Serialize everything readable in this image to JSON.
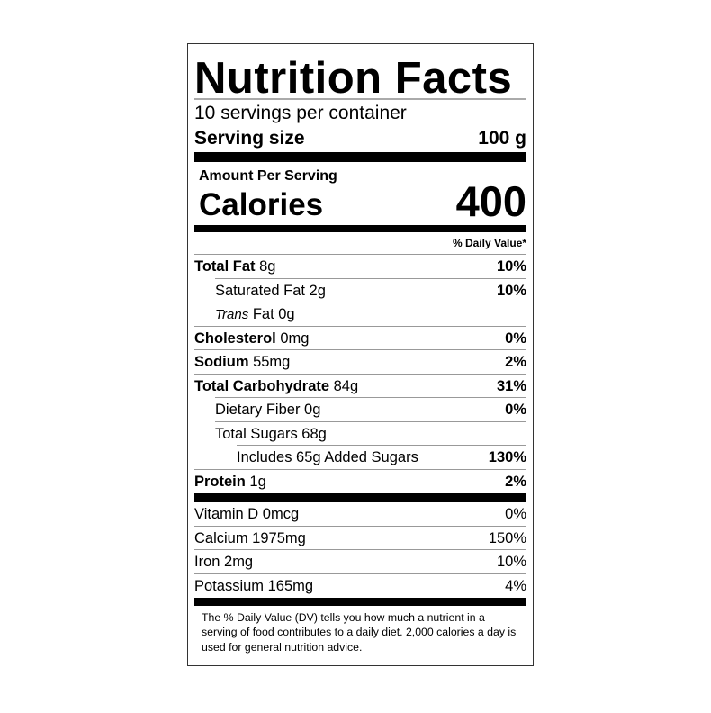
{
  "title": "Nutrition Facts",
  "servings_per_container": "10 servings per container",
  "serving_size": {
    "label": "Serving size",
    "value": "100 g"
  },
  "amount_per_serving": "Amount Per Serving",
  "calories": {
    "label": "Calories",
    "value": "400"
  },
  "daily_value_header": "% Daily Value*",
  "nutrients": [
    {
      "bold": "Total Fat",
      "amount": " 8g",
      "dv": "10%",
      "indent": 0
    },
    {
      "bold": "",
      "amount": "Saturated Fat 2g",
      "dv": "10%",
      "indent": 1
    },
    {
      "italic": "Trans",
      "amount": " Fat 0g",
      "dv": "",
      "indent": 1
    },
    {
      "bold": "Cholesterol",
      "amount": " 0mg",
      "dv": "0%",
      "indent": 0
    },
    {
      "bold": "Sodium",
      "amount": " 55mg",
      "dv": "2%",
      "indent": 0
    },
    {
      "bold": "Total Carbohydrate",
      "amount": " 84g",
      "dv": "31%",
      "indent": 0
    },
    {
      "bold": "",
      "amount": "Dietary Fiber 0g",
      "dv": "0%",
      "indent": 1
    },
    {
      "bold": "",
      "amount": "Total Sugars 68g",
      "dv": "",
      "indent": 1
    },
    {
      "bold": "",
      "amount": "Includes 65g Added Sugars",
      "dv": "130%",
      "indent": 2
    },
    {
      "bold": "Protein",
      "amount": " 1g",
      "dv": "2%",
      "indent": 0
    }
  ],
  "vitamins": [
    {
      "label": "Vitamin D 0mcg",
      "dv": "0%"
    },
    {
      "label": "Calcium 1975mg",
      "dv": "150%"
    },
    {
      "label": "Iron 2mg",
      "dv": "10%"
    },
    {
      "label": "Potassium 165mg",
      "dv": "4%"
    }
  ],
  "footnote": "The % Daily Value (DV) tells you how much a nutrient in a serving of food contributes to a daily diet. 2,000 calories a day is used for general nutrition advice."
}
